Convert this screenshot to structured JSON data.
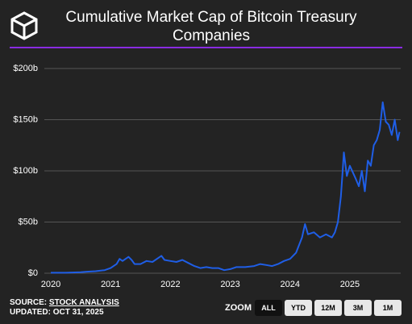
{
  "chart_data": {
    "type": "line",
    "title": "Cumulative Market Cap of Bitcoin Treasury Companies",
    "x": [
      2020.0,
      2020.25,
      2020.5,
      2020.6,
      2020.75,
      2020.9,
      2021.0,
      2021.1,
      2021.15,
      2021.2,
      2021.3,
      2021.35,
      2021.4,
      2021.5,
      2021.6,
      2021.7,
      2021.8,
      2021.85,
      2021.9,
      2022.0,
      2022.1,
      2022.2,
      2022.3,
      2022.4,
      2022.5,
      2022.6,
      2022.7,
      2022.8,
      2022.9,
      2023.0,
      2023.1,
      2023.25,
      2023.4,
      2023.5,
      2023.6,
      2023.7,
      2023.8,
      2023.9,
      2024.0,
      2024.1,
      2024.2,
      2024.25,
      2024.3,
      2024.4,
      2024.5,
      2024.6,
      2024.7,
      2024.75,
      2024.8,
      2024.85,
      2024.88,
      2024.9,
      2024.95,
      2025.0,
      2025.1,
      2025.15,
      2025.2,
      2025.25,
      2025.3,
      2025.35,
      2025.4,
      2025.45,
      2025.5,
      2025.55,
      2025.6,
      2025.65,
      2025.7,
      2025.75,
      2025.8,
      2025.83
    ],
    "values": [
      0.5,
      0.5,
      1,
      1.5,
      2,
      3,
      5,
      9,
      14,
      12,
      16,
      13,
      9,
      9,
      12,
      11,
      15,
      17,
      13,
      12,
      11,
      13,
      10,
      7,
      5,
      6,
      5,
      5,
      3,
      4,
      6,
      6,
      7,
      9,
      8,
      7,
      9,
      12,
      14,
      20,
      35,
      48,
      38,
      40,
      35,
      38,
      35,
      40,
      50,
      75,
      100,
      118,
      95,
      105,
      92,
      85,
      100,
      80,
      110,
      105,
      125,
      130,
      140,
      167,
      148,
      145,
      135,
      150,
      130,
      138
    ],
    "color": "#1f5ee6",
    "xlim": [
      2020,
      2025.85
    ],
    "xticks": [
      2020,
      2021,
      2022,
      2023,
      2024,
      2025
    ],
    "ylim": [
      0,
      200
    ],
    "yticks": [
      {
        "value": 0,
        "label": "$0"
      },
      {
        "value": 50,
        "label": "$50b"
      },
      {
        "value": 100,
        "label": "$100b"
      },
      {
        "value": 150,
        "label": "$150b"
      },
      {
        "value": 200,
        "label": "$200b"
      }
    ],
    "grid": true,
    "source_label": "SOURCE:",
    "source": "STOCK ANALYSIS",
    "updated": "UPDATED: OCT 31, 2025",
    "zoom_label": "ZOOM",
    "zoom_options": [
      "ALL",
      "YTD",
      "12M",
      "3M",
      "1M"
    ]
  }
}
